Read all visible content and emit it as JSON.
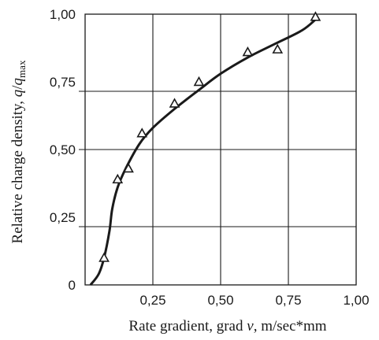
{
  "chart_data": {
    "type": "scatter",
    "xlabel": "Rate gradient, grad v, m/sec*mm",
    "ylabel": "Relative charge density, q/q_max",
    "xlabel_parts": {
      "prefix": "Rate gradient, grad ",
      "var": "v",
      "suffix": ", m/sec*mm"
    },
    "ylabel_parts": {
      "prefix": "Relative charge density, ",
      "var": "q",
      "slash": "/",
      "var2": "q",
      "sub": "max"
    },
    "xlim": [
      0,
      1.0
    ],
    "ylim": [
      0,
      1.0
    ],
    "xticks": [
      0.25,
      0.5,
      0.75,
      1.0
    ],
    "xtick_labels": [
      "0,25",
      "0,50",
      "0,75",
      "1,00"
    ],
    "yticks": [
      0,
      0.25,
      0.5,
      0.75,
      1.0
    ],
    "ytick_labels": [
      "0",
      "0,25",
      "0,50",
      "0,75",
      "1,00"
    ],
    "grid": true,
    "marker": "triangle",
    "series": [
      {
        "points": [
          {
            "x": 0.07,
            "y": 0.1
          },
          {
            "x": 0.12,
            "y": 0.39
          },
          {
            "x": 0.16,
            "y": 0.43
          },
          {
            "x": 0.21,
            "y": 0.56
          },
          {
            "x": 0.33,
            "y": 0.67
          },
          {
            "x": 0.42,
            "y": 0.75
          },
          {
            "x": 0.6,
            "y": 0.86
          },
          {
            "x": 0.71,
            "y": 0.87
          },
          {
            "x": 0.85,
            "y": 0.99
          }
        ]
      }
    ],
    "fit_curve": [
      [
        0.02,
        0.0
      ],
      [
        0.05,
        0.04
      ],
      [
        0.07,
        0.1
      ],
      [
        0.09,
        0.2
      ],
      [
        0.1,
        0.28
      ],
      [
        0.12,
        0.36
      ],
      [
        0.15,
        0.43
      ],
      [
        0.2,
        0.52
      ],
      [
        0.25,
        0.58
      ],
      [
        0.33,
        0.65
      ],
      [
        0.42,
        0.72
      ],
      [
        0.5,
        0.78
      ],
      [
        0.6,
        0.84
      ],
      [
        0.7,
        0.89
      ],
      [
        0.8,
        0.94
      ],
      [
        0.85,
        0.98
      ]
    ]
  },
  "colors": {
    "ink": "#1a1a1a",
    "grid": "#1a1a1a",
    "background": "#ffffff"
  }
}
